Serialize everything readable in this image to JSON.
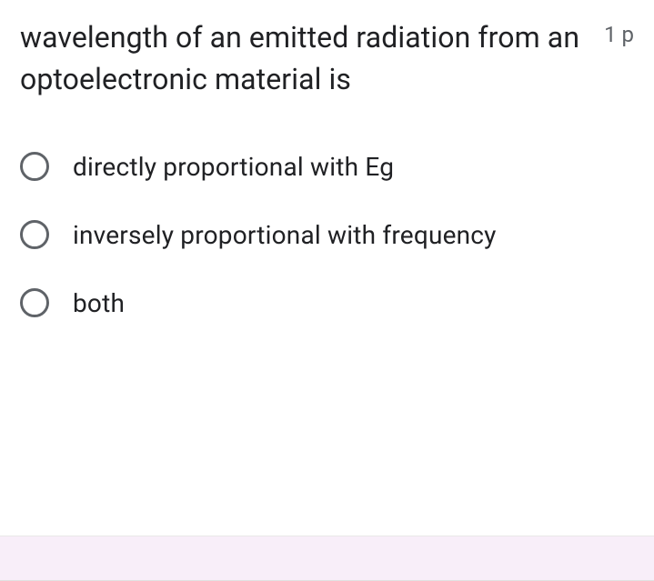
{
  "question": {
    "text": "wavelength of an emitted radiation from an optoelectronic material is",
    "points": "1 p"
  },
  "options": [
    {
      "label": "directly proportional with Eg"
    },
    {
      "label": "inversely proportional with frequency"
    },
    {
      "label": "both"
    }
  ],
  "colors": {
    "text_primary": "#202124",
    "text_secondary": "#5f6368",
    "radio_border": "#5f6368",
    "bottom_bar_bg": "#f8eef9",
    "background": "#ffffff"
  },
  "typography": {
    "question_fontsize": 32,
    "points_fontsize": 24,
    "option_fontsize": 28
  }
}
